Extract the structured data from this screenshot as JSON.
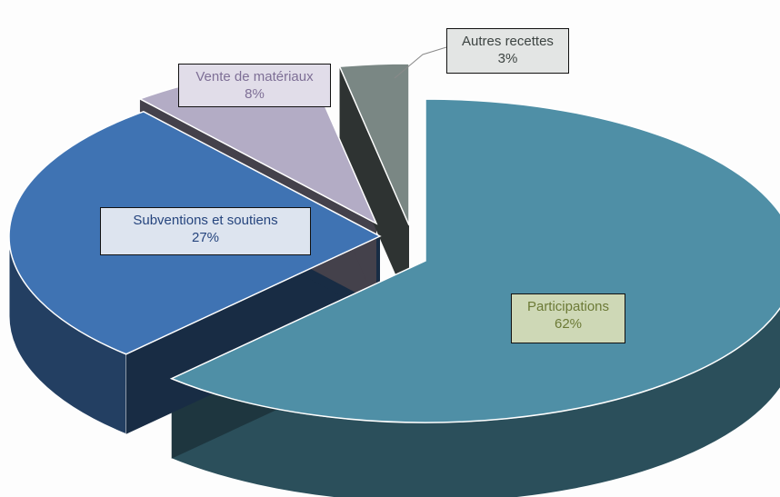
{
  "chart_data": {
    "type": "pie",
    "title": "",
    "slices": [
      {
        "label": "Participations",
        "value": 62,
        "value_label": "62%",
        "color": "#4f8fa6",
        "label_bg": "#ced8b6",
        "label_color": "#6c7a36"
      },
      {
        "label": "Subventions et soutiens",
        "value": 27,
        "value_label": "27%",
        "color": "#3f73b3",
        "label_bg": "#dde4ef",
        "label_color": "#26457e"
      },
      {
        "label": "Vente de matériaux",
        "value": 8,
        "value_label": "8%",
        "color": "#b3acc5",
        "label_bg": "#e1dde9",
        "label_color": "#7e6f96"
      },
      {
        "label": "Autres recettes",
        "value": 3,
        "value_label": "3%",
        "color": "#7a8784",
        "label_bg": "#e3e5e4",
        "label_color": "#3d4442"
      }
    ],
    "legend": "none",
    "style": "3d-exploded"
  }
}
